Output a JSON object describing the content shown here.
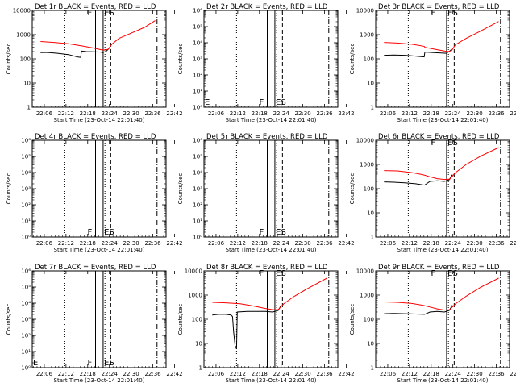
{
  "figure": {
    "colors": {
      "events": "#000000",
      "lld": "#ff0000",
      "background": "#ffffff"
    }
  },
  "chart_data": [
    {
      "type": "line",
      "title": "Det 1r BLACK = Events, RED = LLD",
      "xlabel": "Start Time (23-Oct-14 22:01:40)",
      "ylabel": "Counts/sec",
      "scale": "log",
      "ylim": [
        1,
        10000
      ],
      "yticks": [
        "1",
        "10",
        "100",
        "1000",
        "10000"
      ],
      "xticks": [
        "22:06",
        "22:12",
        "22:18",
        "22:24",
        "22:30",
        "22:36",
        "22:42"
      ],
      "markers": [
        "F",
        "ES"
      ],
      "series": [
        {
          "name": "BLACK = Events",
          "color": "#000000",
          "x": [
            3.3,
            5,
            8,
            11,
            13.5,
            14.4,
            14.6,
            16,
            18,
            20,
            20.5,
            21.5,
            22.3
          ],
          "y": [
            180,
            185,
            170,
            150,
            120,
            115,
            210,
            200,
            195,
            190,
            180,
            210,
            280
          ]
        },
        {
          "name": "RED = LLD",
          "color": "#ff0000",
          "x": [
            3.3,
            7,
            11,
            15,
            18,
            20,
            21,
            22,
            23,
            25,
            28,
            32,
            35
          ],
          "y": [
            520,
            480,
            420,
            340,
            280,
            240,
            230,
            250,
            400,
            700,
            1100,
            2000,
            3800
          ]
        }
      ],
      "vlines": [
        {
          "x": 10,
          "style": "dotted"
        },
        {
          "x": 18.5,
          "style": "solid"
        },
        {
          "x": 20.6,
          "style": "solid"
        },
        {
          "x": 21.1,
          "style": "dotted"
        },
        {
          "x": 22.7,
          "style": "dashed"
        },
        {
          "x": 35.5,
          "style": "dashdot"
        }
      ]
    },
    {
      "type": "line",
      "title": "Det 2r BLACK = Events, RED = LLD",
      "xlabel": "Start Time (23-Oct-14 22:01:40)",
      "ylabel": "Counts/sec",
      "scale": "log",
      "ylim": [
        1,
        1000000
      ],
      "yticks": [
        "10⁰",
        "10¹",
        "10²",
        "10³",
        "10⁴",
        "10⁵",
        "10⁶"
      ],
      "xticks": [
        "22:06",
        "22:12",
        "22:18",
        "22:24",
        "22:30",
        "22:36",
        "22:42"
      ],
      "markers": [
        "E",
        "F",
        "ES"
      ],
      "series": [],
      "vlines": [
        {
          "x": 10,
          "style": "dotted"
        },
        {
          "x": 18.5,
          "style": "solid"
        },
        {
          "x": 20.6,
          "style": "solid"
        },
        {
          "x": 21.1,
          "style": "dotted"
        },
        {
          "x": 22.7,
          "style": "dashed"
        },
        {
          "x": 35.5,
          "style": "dashdot"
        }
      ]
    },
    {
      "type": "line",
      "title": "Det 3r BLACK = Events, RED = LLD",
      "xlabel": "Start Time (23-Oct-14 22:01:40)",
      "ylabel": "Counts/sec",
      "scale": "log",
      "ylim": [
        1,
        10000
      ],
      "yticks": [
        "1",
        "10",
        "100",
        "1000",
        "10000"
      ],
      "xticks": [
        "22:06",
        "22:12",
        "22:18",
        "22:24",
        "22:30",
        "22:36",
        "22:42"
      ],
      "markers": [
        "F",
        "ES"
      ],
      "series": [
        {
          "name": "BLACK = Events",
          "color": "#000000",
          "x": [
            3.3,
            6,
            9,
            12,
            14.4,
            14.6,
            17,
            19,
            20.5,
            21.3,
            22
          ],
          "y": [
            140,
            145,
            140,
            130,
            120,
            190,
            180,
            175,
            170,
            200,
            250
          ]
        },
        {
          "name": "RED = LLD",
          "color": "#ff0000",
          "x": [
            3.3,
            7,
            11,
            14.4,
            14.6,
            18,
            20,
            21,
            22,
            23,
            26,
            30,
            35
          ],
          "y": [
            480,
            450,
            400,
            330,
            300,
            240,
            210,
            200,
            220,
            380,
            700,
            1400,
            3500
          ]
        }
      ],
      "vlines": [
        {
          "x": 10,
          "style": "dotted"
        },
        {
          "x": 18.5,
          "style": "solid"
        },
        {
          "x": 20.6,
          "style": "solid"
        },
        {
          "x": 21.1,
          "style": "dotted"
        },
        {
          "x": 22.7,
          "style": "dashed"
        },
        {
          "x": 35.5,
          "style": "dashdot"
        }
      ]
    },
    {
      "type": "line",
      "title": "Det 4r BLACK = Events, RED = LLD",
      "xlabel": "Start Time (23-Oct-14 22:01:40)",
      "ylabel": "Counts/sec",
      "scale": "log",
      "ylim": [
        1,
        1000000
      ],
      "yticks": [
        "10⁰",
        "10¹",
        "10²",
        "10³",
        "10⁴",
        "10⁵",
        "10⁶"
      ],
      "xticks": [
        "22:06",
        "22:12",
        "22:18",
        "22:24",
        "22:30",
        "22:36",
        "22:42"
      ],
      "markers": [
        "F",
        "ES"
      ],
      "series": [],
      "vlines": [
        {
          "x": 10,
          "style": "dotted"
        },
        {
          "x": 18.5,
          "style": "solid"
        },
        {
          "x": 20.6,
          "style": "solid"
        },
        {
          "x": 21.1,
          "style": "dotted"
        },
        {
          "x": 22.7,
          "style": "dashed"
        },
        {
          "x": 35.5,
          "style": "dashdot"
        }
      ]
    },
    {
      "type": "line",
      "title": "Det 5r BLACK = Events, RED = LLD",
      "xlabel": "Start Time (23-Oct-14 22:01:40)",
      "ylabel": "Counts/sec",
      "scale": "log",
      "ylim": [
        1,
        1000000
      ],
      "yticks": [
        "10⁰",
        "10¹",
        "10²",
        "10³",
        "10⁴",
        "10⁵",
        "10⁶"
      ],
      "xticks": [
        "22:06",
        "22:12",
        "22:18",
        "22:24",
        "22:30",
        "22:36",
        "22:42"
      ],
      "markers": [
        "F",
        "ES"
      ],
      "series": [],
      "vlines": [
        {
          "x": 10,
          "style": "dotted"
        },
        {
          "x": 18.5,
          "style": "solid"
        },
        {
          "x": 20.6,
          "style": "solid"
        },
        {
          "x": 21.1,
          "style": "dotted"
        },
        {
          "x": 22.7,
          "style": "dashed"
        },
        {
          "x": 35.5,
          "style": "dashdot"
        }
      ]
    },
    {
      "type": "line",
      "title": "Det 6r BLACK = Events, RED = LLD",
      "xlabel": "Start Time (23-Oct-14 22:01:40)",
      "ylabel": "Counts/sec",
      "scale": "log",
      "ylim": [
        1,
        10000
      ],
      "yticks": [
        "1",
        "10",
        "100",
        "1000",
        "10000"
      ],
      "xticks": [
        "22:06",
        "22:12",
        "22:18",
        "22:24",
        "22:30",
        "22:36",
        "22:42"
      ],
      "markers": [
        "F",
        "ES"
      ],
      "series": [
        {
          "name": "BLACK = Events",
          "color": "#000000",
          "x": [
            3.3,
            6,
            9,
            12,
            14.5,
            16,
            18,
            20,
            21.3,
            22.2
          ],
          "y": [
            190,
            185,
            175,
            160,
            140,
            200,
            210,
            200,
            230,
            380
          ]
        },
        {
          "name": "RED = LLD",
          "color": "#ff0000",
          "x": [
            3.3,
            7,
            11,
            14,
            16,
            18,
            20,
            21.5,
            23,
            26,
            30,
            35
          ],
          "y": [
            560,
            540,
            460,
            380,
            310,
            260,
            240,
            250,
            450,
            1000,
            2200,
            5000
          ]
        }
      ],
      "vlines": [
        {
          "x": 10,
          "style": "dotted"
        },
        {
          "x": 18.5,
          "style": "solid"
        },
        {
          "x": 20.6,
          "style": "solid"
        },
        {
          "x": 21.1,
          "style": "dotted"
        },
        {
          "x": 22.7,
          "style": "dashed"
        },
        {
          "x": 35.5,
          "style": "dashdot"
        }
      ]
    },
    {
      "type": "line",
      "title": "Det 7r BLACK = Events, RED = LLD",
      "xlabel": "Start Time (23-Oct-14 22:01:40)",
      "ylabel": "Counts/sec",
      "scale": "log",
      "ylim": [
        1,
        1000000
      ],
      "yticks": [
        "10⁰",
        "10¹",
        "10²",
        "10³",
        "10⁴",
        "10⁵",
        "10⁶"
      ],
      "xticks": [
        "22:06",
        "22:12",
        "22:18",
        "22:24",
        "22:30",
        "22:36",
        "22:42"
      ],
      "markers": [
        "E",
        "F",
        "ES"
      ],
      "series": [],
      "vlines": [
        {
          "x": 10,
          "style": "dotted"
        },
        {
          "x": 18.5,
          "style": "solid"
        },
        {
          "x": 20.6,
          "style": "solid"
        },
        {
          "x": 21.1,
          "style": "dotted"
        },
        {
          "x": 22.7,
          "style": "dashed"
        },
        {
          "x": 35.5,
          "style": "dashdot"
        }
      ]
    },
    {
      "type": "line",
      "title": "Det 8r BLACK = Events, RED = LLD",
      "xlabel": "Start Time (23-Oct-14 22:01:40)",
      "ylabel": "Counts/sec",
      "scale": "log",
      "ylim": [
        1,
        10000
      ],
      "yticks": [
        "1",
        "10",
        "100",
        "1000",
        "10000"
      ],
      "xticks": [
        "22:06",
        "22:12",
        "22:18",
        "22:24",
        "22:30",
        "22:36",
        "22:42"
      ],
      "markers": [
        "F",
        "ES"
      ],
      "series": [
        {
          "name": "BLACK = Events",
          "color": "#000000",
          "x": [
            3.3,
            5,
            7,
            8.5,
            8.9,
            9.2,
            9.6,
            10,
            10.2,
            13,
            16,
            18,
            20,
            21.5,
            22.2
          ],
          "y": [
            150,
            160,
            160,
            150,
            130,
            30,
            8,
            6,
            200,
            210,
            210,
            210,
            200,
            230,
            350
          ]
        },
        {
          "name": "RED = LLD",
          "color": "#ff0000",
          "x": [
            3.3,
            7,
            11,
            14,
            16,
            18,
            20,
            21.5,
            23,
            26,
            30,
            35
          ],
          "y": [
            500,
            480,
            440,
            370,
            320,
            280,
            250,
            250,
            430,
            900,
            2000,
            5000
          ]
        }
      ],
      "vlines": [
        {
          "x": 10,
          "style": "dotted"
        },
        {
          "x": 18.5,
          "style": "solid"
        },
        {
          "x": 20.6,
          "style": "solid"
        },
        {
          "x": 21.1,
          "style": "dotted"
        },
        {
          "x": 22.7,
          "style": "dashed"
        },
        {
          "x": 35.5,
          "style": "dashdot"
        }
      ]
    },
    {
      "type": "line",
      "title": "Det 9r BLACK = Events, RED = LLD",
      "xlabel": "Start Time (23-Oct-14 22:01:40)",
      "ylabel": "Counts/sec",
      "scale": "log",
      "ylim": [
        1,
        10000
      ],
      "yticks": [
        "1",
        "10",
        "100",
        "1000",
        "10000"
      ],
      "xticks": [
        "22:06",
        "22:12",
        "22:18",
        "22:24",
        "22:30",
        "22:36",
        "22:42"
      ],
      "markers": [
        "F",
        "ES"
      ],
      "series": [
        {
          "name": "BLACK = Events",
          "color": "#000000",
          "x": [
            3.3,
            6,
            9,
            12,
            14.5,
            16,
            18,
            20,
            21.3,
            22.2
          ],
          "y": [
            170,
            175,
            170,
            165,
            160,
            200,
            210,
            200,
            230,
            380
          ]
        },
        {
          "name": "RED = LLD",
          "color": "#ff0000",
          "x": [
            3.3,
            7,
            11,
            14,
            16,
            18,
            20,
            21.5,
            23,
            26,
            30,
            35
          ],
          "y": [
            520,
            500,
            450,
            380,
            320,
            270,
            240,
            250,
            430,
            900,
            2100,
            5000
          ]
        }
      ],
      "vlines": [
        {
          "x": 10,
          "style": "dotted"
        },
        {
          "x": 18.5,
          "style": "solid"
        },
        {
          "x": 20.6,
          "style": "solid"
        },
        {
          "x": 21.1,
          "style": "dotted"
        },
        {
          "x": 22.7,
          "style": "dashed"
        },
        {
          "x": 35.5,
          "style": "dashdot"
        }
      ]
    }
  ]
}
